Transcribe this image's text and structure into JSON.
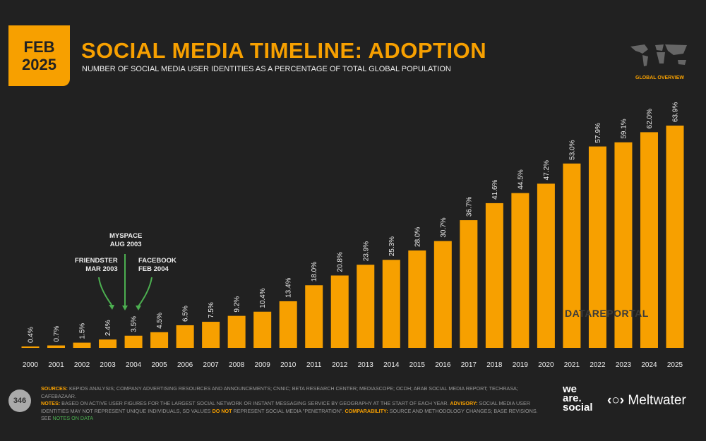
{
  "header": {
    "date_line1": "FEB",
    "date_line2": "2025",
    "title": "SOCIAL MEDIA TIMELINE: ADOPTION",
    "subtitle": "NUMBER OF SOCIAL MEDIA USER IDENTITIES AS A PERCENTAGE OF TOTAL GLOBAL POPULATION",
    "region_label": "GLOBAL OVERVIEW"
  },
  "annotations": {
    "friendster": [
      "FRIENDSTER",
      "MAR 2003"
    ],
    "myspace": [
      "MYSPACE",
      "AUG 2003"
    ],
    "facebook": [
      "FACEBOOK",
      "FEB 2004"
    ],
    "arrow_color": "#4caf50"
  },
  "chart_data": {
    "type": "bar",
    "categories": [
      "2000",
      "2001",
      "2002",
      "2003",
      "2004",
      "2005",
      "2006",
      "2007",
      "2008",
      "2009",
      "2010",
      "2011",
      "2012",
      "2013",
      "2014",
      "2015",
      "2016",
      "2017",
      "2018",
      "2019",
      "2020",
      "2021",
      "2022",
      "2023",
      "2024",
      "2025"
    ],
    "values": [
      0.4,
      0.7,
      1.5,
      2.4,
      3.5,
      4.5,
      6.5,
      7.5,
      9.2,
      10.4,
      13.4,
      18.0,
      20.8,
      23.9,
      25.3,
      28.0,
      30.7,
      36.7,
      41.6,
      44.5,
      47.2,
      53.0,
      57.9,
      59.1,
      62.0,
      63.9
    ],
    "labels": [
      "0.4%",
      "0.7%",
      "1.5%",
      "2.4%",
      "3.5%",
      "4.5%",
      "6.5%",
      "7.5%",
      "9.2%",
      "10.4%",
      "13.4%",
      "18.0%",
      "20.8%",
      "23.9%",
      "25.3%",
      "28.0%",
      "30.7%",
      "36.7%",
      "41.6%",
      "44.5%",
      "47.2%",
      "53.0%",
      "57.9%",
      "59.1%",
      "62.0%",
      "63.9%"
    ],
    "ylim": [
      0,
      65
    ],
    "grid": false,
    "bar_color": "#f7a000"
  },
  "watermark": "DATAREPORTAL",
  "footer": {
    "page": "346",
    "sources_label": "SOURCES:",
    "sources": "KEPIOS ANALYSIS; COMPANY ADVERTISING RESOURCES AND ANNOUNCEMENTS; CNNIC; BETA RESEARCH CENTER; MEDIASCOPE; OCDH; ARAB SOCIAL MEDIA REPORT; TECHRASA; CAFEBAZAAR.",
    "notes_label": "NOTES:",
    "notes": "BASED ON ACTIVE USER FIGURES FOR THE LARGEST SOCIAL NETWORK OR INSTANT MESSAGING SERVICE BY GEOGRAPHY AT THE START OF EACH YEAR.",
    "advisory_label": "ADVISORY:",
    "advisory_a": "SOCIAL MEDIA USER IDENTITIES MAY NOT REPRESENT UNIQUE INDIVIDUALS, SO VALUES",
    "do_not": "DO NOT",
    "advisory_b": "REPRESENT SOCIAL MEDIA \"PENETRATION\".",
    "comparability_label": "COMPARABILITY:",
    "comparability": "SOURCE AND METHODOLOGY CHANGES; BASE REVISIONS. SEE",
    "notes_link": "NOTES ON DATA",
    "logo1": [
      "we",
      "are.",
      "social"
    ],
    "logo2": "Meltwater"
  }
}
